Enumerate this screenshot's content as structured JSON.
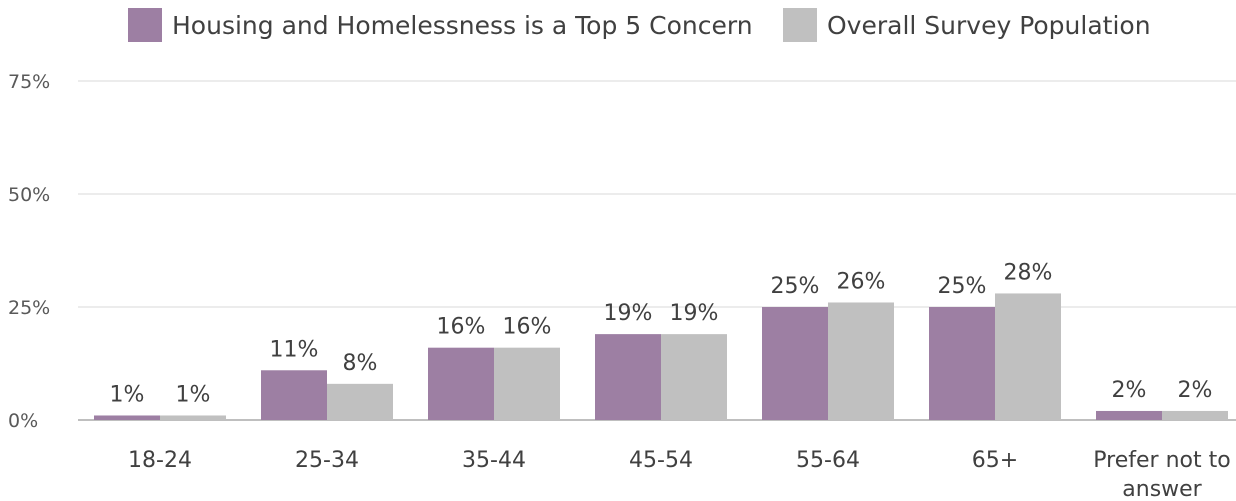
{
  "chart_data": {
    "type": "bar",
    "categories": [
      "18-24",
      "25-34",
      "35-44",
      "45-54",
      "55-64",
      "65+",
      "Prefer not to answer"
    ],
    "series": [
      {
        "name": "Housing and Homelessness is a Top 5 Concern",
        "color": "#9d7fa3",
        "values": [
          1,
          11,
          16,
          19,
          25,
          25,
          2
        ],
        "labels": [
          "1%",
          "11%",
          "16%",
          "19%",
          "25%",
          "25%",
          "2%"
        ]
      },
      {
        "name": "Overall Survey Population",
        "color": "#c0c0c0",
        "values": [
          1,
          8,
          16,
          19,
          26,
          28,
          2
        ],
        "labels": [
          "1%",
          "8%",
          "16%",
          "19%",
          "26%",
          "28%",
          "2%"
        ]
      }
    ],
    "y_ticks": [
      0,
      25,
      50,
      75
    ],
    "y_tick_labels": [
      "0%",
      "25%",
      "50%",
      "75%"
    ],
    "ylim": [
      0,
      75
    ],
    "grid": true,
    "legend_position": "top"
  }
}
